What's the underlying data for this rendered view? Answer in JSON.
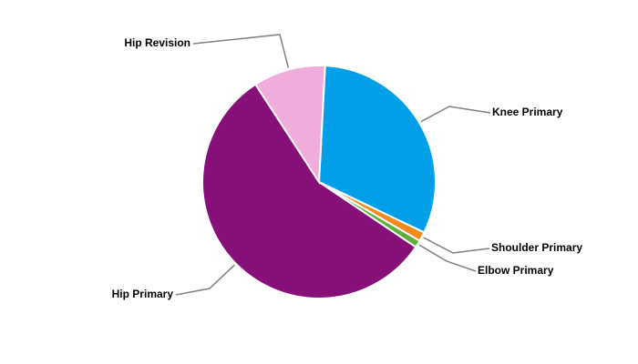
{
  "chart_data": {
    "type": "pie",
    "categories": [
      "Knee Primary",
      "Shoulder Primary",
      "Elbow Primary",
      "Hip Primary",
      "Hip Revision"
    ],
    "values": [
      31.3,
      1.3,
      1.0,
      56.4,
      10.0
    ],
    "colors": [
      "#009fe8",
      "#f08a1c",
      "#5fae3c",
      "#861078",
      "#f0acdb"
    ]
  }
}
